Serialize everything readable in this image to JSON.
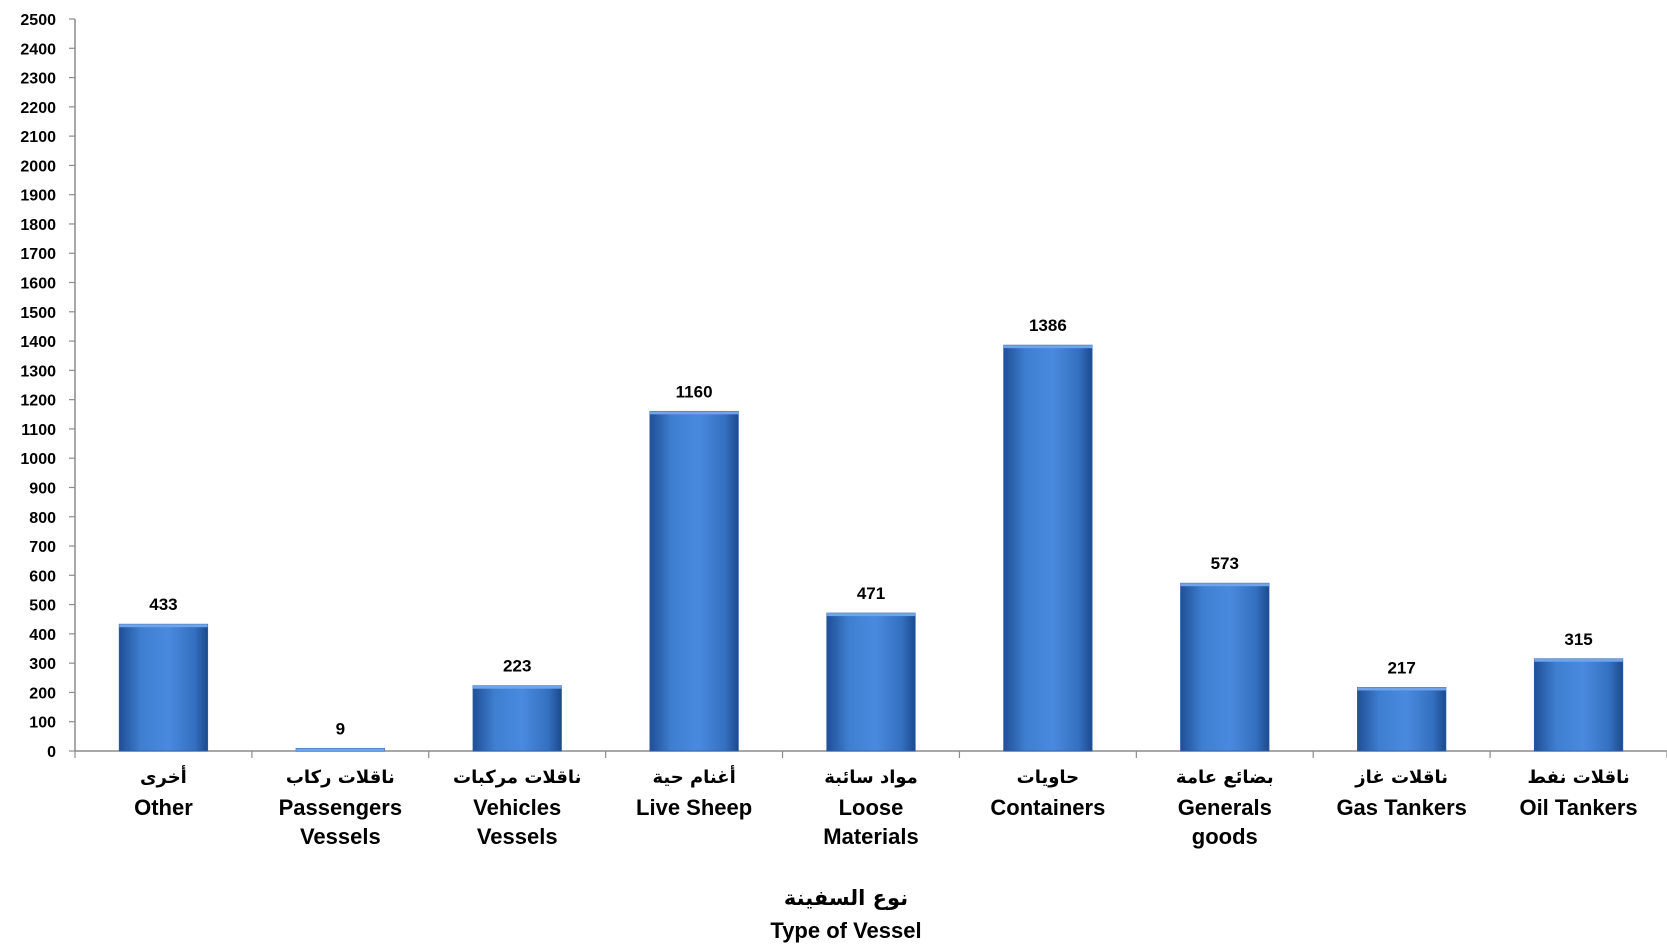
{
  "chart_data": {
    "type": "bar",
    "categories": [
      {
        "ar": "أخرى",
        "en": [
          "Other"
        ]
      },
      {
        "ar": "ناقلات ركاب",
        "en": [
          "Passengers",
          "Vessels"
        ]
      },
      {
        "ar": "ناقلات مركبات",
        "en": [
          "Vehicles",
          "Vessels"
        ]
      },
      {
        "ar": "أغنام حية",
        "en": [
          "Live Sheep"
        ]
      },
      {
        "ar": "مواد سائبة",
        "en": [
          "Loose",
          "Materials"
        ]
      },
      {
        "ar": "حاويات",
        "en": [
          "Containers"
        ]
      },
      {
        "ar": "بضائع عامة",
        "en": [
          "Generals",
          "goods"
        ]
      },
      {
        "ar": "ناقلات غاز",
        "en": [
          "Gas Tankers"
        ]
      },
      {
        "ar": "ناقلات نفط",
        "en": [
          "Oil Tankers"
        ]
      }
    ],
    "values": [
      433,
      9,
      223,
      1160,
      471,
      1386,
      573,
      217,
      315
    ],
    "xlabel_ar": "نوع السفينة",
    "xlabel_en": "Type of Vessel",
    "ylim": [
      0,
      2500
    ],
    "ytick_step": 100,
    "bar_color": "#3f7fd1",
    "grid": false,
    "legend": false
  }
}
